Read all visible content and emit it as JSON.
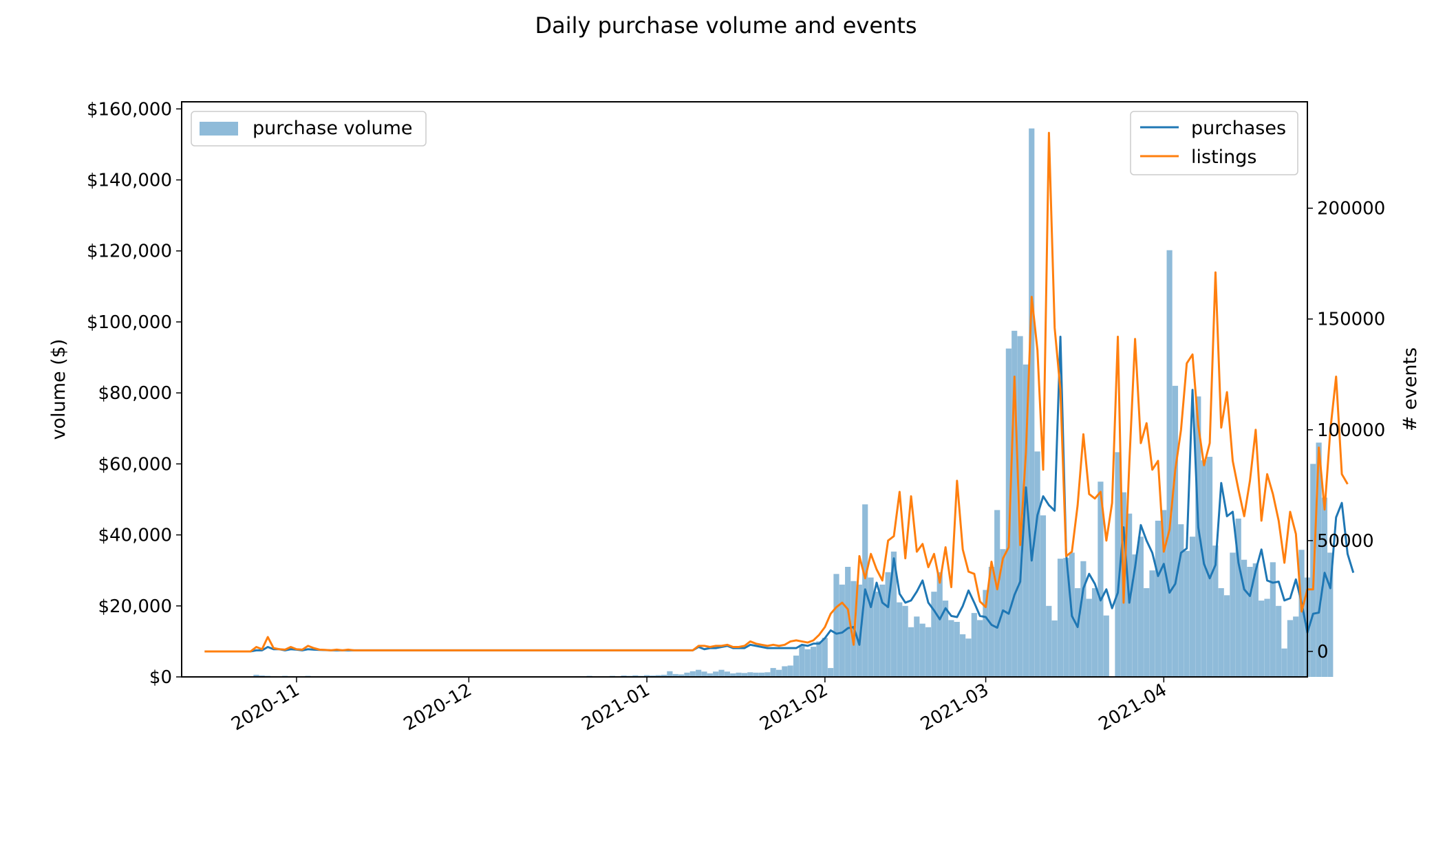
{
  "chart_data": {
    "type": "bar+line",
    "title": "Daily purchase volume and events",
    "colors": {
      "bars": "#1f77b4",
      "purchases": "#1f77b4",
      "listings": "#ff7f0e"
    },
    "x_axis": {
      "type": "date",
      "range": [
        "2020-10-12",
        "2021-04-26"
      ],
      "tick_labels": [
        "2020-11",
        "2020-12",
        "2021-01",
        "2021-02",
        "2021-03",
        "2021-04"
      ],
      "tick_dates": [
        "2020-11-01",
        "2020-12-01",
        "2021-01-01",
        "2021-02-01",
        "2021-03-01",
        "2021-04-01"
      ]
    },
    "y_left": {
      "label": "volume ($)",
      "range": [
        0,
        162000
      ],
      "ticks": [
        0,
        20000,
        40000,
        60000,
        80000,
        100000,
        120000,
        140000,
        160000
      ],
      "tick_labels": [
        "$0",
        "$20,000",
        "$40,000",
        "$60,000",
        "$80,000",
        "$100,000",
        "$120,000",
        "$140,000",
        "$160,000"
      ]
    },
    "y_right": {
      "label": "# events",
      "range": [
        -11500,
        248000
      ],
      "ticks": [
        0,
        50000,
        100000,
        150000,
        200000
      ],
      "tick_labels": [
        "0",
        "50000",
        "100000",
        "150000",
        "200000"
      ]
    },
    "legend_left": {
      "placement": "upper-left",
      "entries": [
        "purchase volume"
      ]
    },
    "legend_right": {
      "placement": "upper-right",
      "entries": [
        "purchases",
        "listings"
      ]
    },
    "bar_series": {
      "name": "purchase volume",
      "start_date": "2020-10-17",
      "values": [
        0,
        0,
        0,
        0,
        0,
        0,
        0,
        0,
        600,
        400,
        300,
        200,
        150,
        300,
        200,
        150,
        200,
        300,
        150,
        200,
        150,
        100,
        100,
        100,
        100,
        100,
        100,
        100,
        80,
        80,
        80,
        80,
        80,
        80,
        80,
        80,
        80,
        80,
        80,
        80,
        80,
        80,
        80,
        80,
        80,
        80,
        80,
        80,
        80,
        80,
        80,
        80,
        80,
        80,
        80,
        80,
        80,
        80,
        80,
        80,
        150,
        100,
        100,
        150,
        200,
        150,
        300,
        100,
        200,
        150,
        300,
        200,
        400,
        300,
        450,
        300,
        500,
        400,
        500,
        600,
        1600,
        800,
        700,
        1200,
        1600,
        2000,
        1500,
        1000,
        1500,
        2000,
        1500,
        1000,
        1200,
        1100,
        1300,
        1200,
        1200,
        1300,
        2500,
        2000,
        3000,
        3200,
        6000,
        9000,
        7800,
        8500,
        10000,
        11000,
        2500,
        29000,
        26000,
        31000,
        27000,
        26000,
        48600,
        28000,
        24000,
        26000,
        29500,
        35300,
        21000,
        20000,
        14000,
        17000,
        15000,
        14000,
        24000,
        29500,
        21500,
        16000,
        15500,
        12000,
        10800,
        18000,
        16000,
        24500,
        31000,
        47000,
        36000,
        92500,
        97500,
        96000,
        88000,
        154500,
        63500,
        45500,
        20000,
        15900,
        33300,
        33500,
        35000,
        25000,
        32600,
        22000,
        25000,
        55000,
        17300,
        0,
        63300,
        52000,
        46000,
        34500,
        39500,
        25000,
        30000,
        44000,
        47000,
        120200,
        82000,
        43000,
        35500,
        39500,
        79000,
        61000,
        62000,
        37000,
        25000,
        23000,
        35000,
        44600,
        33000,
        31000,
        32000,
        21500,
        22000,
        32300,
        20000,
        8000,
        16000,
        17000,
        35800,
        28000,
        60000,
        66000,
        50500,
        35000
      ]
    },
    "line_series": [
      {
        "name": "purchases",
        "start_date": "2020-10-16",
        "values": [
          0,
          0,
          0,
          0,
          0,
          0,
          0,
          0,
          0,
          500,
          500,
          2000,
          1000,
          1000,
          500,
          1000,
          800,
          500,
          1000,
          800,
          700,
          600,
          500,
          500,
          500,
          500,
          500,
          500,
          500,
          500,
          500,
          500,
          500,
          500,
          500,
          500,
          500,
          500,
          500,
          500,
          500,
          500,
          500,
          500,
          500,
          500,
          500,
          500,
          500,
          500,
          500,
          500,
          500,
          500,
          500,
          500,
          500,
          500,
          500,
          500,
          500,
          500,
          500,
          500,
          500,
          500,
          500,
          500,
          500,
          500,
          500,
          500,
          500,
          500,
          500,
          500,
          500,
          500,
          500,
          500,
          500,
          500,
          500,
          500,
          500,
          500,
          2000,
          1000,
          1500,
          1500,
          2000,
          2500,
          1500,
          1500,
          1500,
          3000,
          2500,
          2000,
          1500,
          1500,
          1500,
          1500,
          1500,
          1500,
          3000,
          2500,
          3500,
          3500,
          6000,
          9500,
          8000,
          8500,
          10500,
          11000,
          3000,
          28000,
          20000,
          31000,
          22000,
          20000,
          42000,
          26000,
          22000,
          23000,
          27000,
          32000,
          22000,
          18500,
          14500,
          19500,
          16000,
          15500,
          20500,
          27500,
          22000,
          16000,
          15500,
          12000,
          10700,
          18500,
          17000,
          25500,
          31500,
          74000,
          41000,
          61500,
          70000,
          66000,
          63500,
          142000,
          44000,
          16000,
          11000,
          28500,
          35000,
          30500,
          23000,
          28000,
          19500,
          26500,
          56000,
          22000,
          38000,
          57000,
          50000,
          44500,
          34000,
          39500,
          26500,
          30500,
          44500,
          46500,
          118000,
          56000,
          39500,
          33000,
          39000,
          76000,
          61000,
          63000,
          40000,
          28000,
          25000,
          36500,
          46000,
          32000,
          31000,
          31500,
          23000,
          24000,
          32500,
          22000,
          8500,
          17000,
          17500,
          35500,
          28500,
          60500,
          67000,
          44000,
          35500
        ]
      },
      {
        "name": "listings",
        "start_date": "2020-10-16",
        "values": [
          0,
          0,
          0,
          0,
          0,
          0,
          0,
          0,
          0,
          2000,
          1000,
          6500,
          1500,
          1000,
          800,
          2000,
          1000,
          800,
          2500,
          1500,
          800,
          700,
          500,
          800,
          500,
          800,
          500,
          500,
          500,
          500,
          500,
          500,
          500,
          500,
          500,
          500,
          500,
          500,
          500,
          500,
          500,
          500,
          500,
          500,
          500,
          500,
          500,
          500,
          500,
          500,
          500,
          500,
          500,
          500,
          500,
          500,
          500,
          500,
          500,
          500,
          500,
          500,
          500,
          500,
          500,
          500,
          500,
          500,
          500,
          500,
          500,
          500,
          500,
          500,
          500,
          500,
          500,
          500,
          500,
          500,
          500,
          500,
          500,
          500,
          500,
          500,
          2500,
          2500,
          2000,
          2500,
          2500,
          3000,
          2000,
          2000,
          2500,
          4500,
          3500,
          3000,
          2500,
          3000,
          2500,
          3000,
          4500,
          5000,
          4500,
          4000,
          5000,
          7500,
          11000,
          17000,
          20000,
          22000,
          19000,
          3000,
          43000,
          33000,
          44000,
          37000,
          32000,
          50000,
          52000,
          72000,
          42000,
          70000,
          45000,
          48500,
          38000,
          44000,
          31000,
          47000,
          29000,
          77000,
          46000,
          36000,
          35000,
          22500,
          20000,
          40500,
          28000,
          42000,
          47000,
          124000,
          48000,
          90000,
          160000,
          136000,
          82000,
          234000,
          146000,
          118000,
          43000,
          45000,
          66000,
          98000,
          71000,
          69000,
          72000,
          50000,
          67000,
          142000,
          22000,
          85000,
          141000,
          94000,
          103000,
          82000,
          86000,
          45000,
          55000,
          82000,
          100000,
          130000,
          134000,
          102000,
          84000,
          94000,
          171000,
          101000,
          117000,
          86000,
          73000,
          61000,
          77000,
          100000,
          59000,
          80000,
          71000,
          59000,
          40000,
          63000,
          53000,
          18000,
          28000,
          28000,
          92000,
          64000,
          100000,
          124000,
          80000,
          75500
        ]
      }
    ]
  }
}
